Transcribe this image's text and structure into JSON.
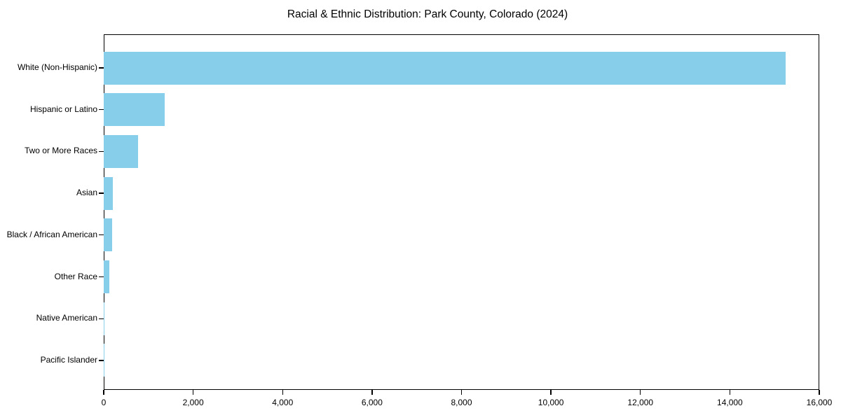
{
  "title": "Racial & Ethnic Distribution: Park County, Colorado (2024)",
  "colors": {
    "bar": "#87CEEB",
    "axis": "#000000",
    "text": "#000000",
    "background": "#ffffff"
  },
  "chart_data": {
    "type": "bar",
    "orientation": "horizontal",
    "title": "Racial & Ethnic Distribution: Park County, Colorado (2024)",
    "categories": [
      "White (Non-Hispanic)",
      "Hispanic or Latino",
      "Two or More Races",
      "Asian",
      "Black / African American",
      "Other Race",
      "Native American",
      "Pacific Islander"
    ],
    "values": [
      15250,
      1370,
      770,
      205,
      185,
      130,
      20,
      5
    ],
    "xlabel": "",
    "ylabel": "",
    "xlim": [
      0,
      16000
    ],
    "x_ticks": [
      0,
      2000,
      4000,
      6000,
      8000,
      10000,
      12000,
      14000,
      16000
    ],
    "x_tick_labels": [
      "0",
      "2,000",
      "4,000",
      "6,000",
      "8,000",
      "10,000",
      "12,000",
      "14,000",
      "16,000"
    ],
    "bar_color": "#87CEEB",
    "grid": false,
    "legend": null
  }
}
